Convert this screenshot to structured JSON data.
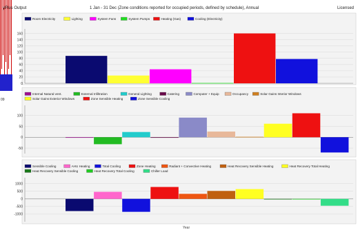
{
  "header": {
    "app_title": "yPlus Output",
    "period_title": "1 Jan - 31 Dec (Zone conditions reported for occupied periods, defined by schedule), Annual",
    "license": "Licensed"
  },
  "side_label": "09",
  "x_axis_label": "Year",
  "colors": {
    "panel_bg": "#f3f3f3",
    "grid": "#d8d8d8",
    "axis": "#888888",
    "left_strip": [
      "#cc0000",
      "#ffffff",
      "#2222cc"
    ]
  },
  "chart_data": [
    {
      "type": "bar",
      "categories": [
        "Year"
      ],
      "ylim": [
        0,
        170
      ],
      "yticks": [
        0,
        20,
        40,
        60,
        80,
        100,
        120,
        140,
        160
      ],
      "legend_rows": [
        6
      ],
      "series": [
        {
          "name": "Room Electricity",
          "color": "#0a0a70",
          "values": [
            88
          ]
        },
        {
          "name": "Lighting",
          "color": "#ffff33",
          "values": [
            25
          ]
        },
        {
          "name": "System Fans",
          "color": "#ff00ff",
          "values": [
            45
          ]
        },
        {
          "name": "System Pumps",
          "color": "#22dd22",
          "values": [
            1
          ]
        },
        {
          "name": "Heating (Gas)",
          "color": "#ee1111",
          "values": [
            160
          ]
        },
        {
          "name": "Cooling (Electricity)",
          "color": "#1111dd",
          "values": [
            78
          ]
        }
      ]
    },
    {
      "type": "bar",
      "categories": [
        "Year"
      ],
      "ylim": [
        -75,
        140
      ],
      "yticks": [
        -50,
        0,
        50,
        100
      ],
      "legend_rows": [
        7,
        3
      ],
      "series": [
        {
          "name": "Internal Natural vent.",
          "color": "#a01090",
          "values": [
            0
          ]
        },
        {
          "name": "External Infiltration",
          "color": "#22bb22",
          "values": [
            -32
          ]
        },
        {
          "name": "General Lighting",
          "color": "#22cccc",
          "values": [
            24
          ]
        },
        {
          "name": "Catering",
          "color": "#6a0a4a",
          "values": [
            0
          ]
        },
        {
          "name": "Computer + Equip",
          "color": "#8a8ac8",
          "values": [
            90
          ]
        },
        {
          "name": "Occupancy",
          "color": "#e8b89a",
          "values": [
            26
          ]
        },
        {
          "name": "Solar Gains Interior Windows",
          "color": "#d08020",
          "values": [
            2
          ]
        },
        {
          "name": "Solar Gains Exterior Windows",
          "color": "#ffff22",
          "values": [
            62
          ]
        },
        {
          "name": "Zone Sensible Heating",
          "color": "#ee1111",
          "values": [
            110
          ]
        },
        {
          "name": "Zone Sensible Cooling",
          "color": "#1111dd",
          "values": [
            -70
          ]
        }
      ]
    },
    {
      "type": "bar",
      "categories": [
        "Year"
      ],
      "ylim": [
        -1500,
        1300
      ],
      "yticks": [
        -1000,
        -500,
        0,
        500,
        1000
      ],
      "legend_rows": [
        7,
        3
      ],
      "series": [
        {
          "name": "Sensible Cooling",
          "color": "#0a0a70",
          "values": [
            -800
          ]
        },
        {
          "name": "AHU Heating",
          "color": "#ff66cc",
          "values": [
            460
          ]
        },
        {
          "name": "Total Cooling",
          "color": "#1111dd",
          "values": [
            -850
          ]
        },
        {
          "name": "Zone Heating",
          "color": "#ee1111",
          "values": [
            780
          ]
        },
        {
          "name": "Radiant + Convective Heating",
          "color": "#ee5511",
          "values": [
            330
          ]
        },
        {
          "name": "Heat Recovery Sensible Heating",
          "color": "#c06010",
          "values": [
            520
          ]
        },
        {
          "name": "Heat Recovery Total Heating",
          "color": "#ffff22",
          "values": [
            640
          ]
        },
        {
          "name": "Heat Recovery Sensible Cooling",
          "color": "#1a7a1a",
          "values": [
            -20
          ]
        },
        {
          "name": "Heat Recovery Total Cooling",
          "color": "#22cc22",
          "values": [
            -30
          ]
        },
        {
          "name": "Chiller Load",
          "color": "#33dd88",
          "values": [
            -450
          ]
        }
      ]
    }
  ]
}
